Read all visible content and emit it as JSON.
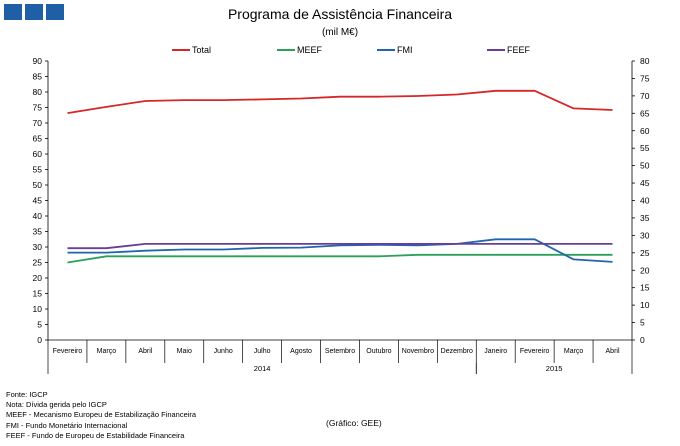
{
  "header": {
    "title": "Programa de Assistência Financeira",
    "unit": "(mil M€)"
  },
  "footer": {
    "notes": [
      "Fonte: IGCP",
      "Nota: Dívida gerida pelo IGCP",
      "MEEF - Mecanismo Europeu de Estabilização Financeira",
      "FMI - Fundo Monetário Internacional",
      "FEEF - Fundo de Europeu de Estabilidade Financeira"
    ],
    "credit": "(Gráfico: GEE)"
  },
  "chart_data": {
    "type": "line",
    "title": "Programa de Assistência Financeira",
    "subtitle": "(mil M€)",
    "categories": [
      "Fevereiro",
      "Março",
      "Abril",
      "Maio",
      "Junho",
      "Julho",
      "Agosto",
      "Setembro",
      "Outubro",
      "Novembro",
      "Dezembro",
      "Janeiro",
      "Fevereiro",
      "Março",
      "Abril"
    ],
    "year_groups": [
      {
        "label": "2014",
        "from": 0,
        "to": 10
      },
      {
        "label": "2015",
        "from": 11,
        "to": 14
      }
    ],
    "series": [
      {
        "name": "Total",
        "color": "#d62728",
        "values": [
          73.2,
          75.2,
          77.1,
          77.4,
          77.4,
          77.6,
          77.9,
          78.5,
          78.5,
          78.7,
          79.2,
          80.4,
          80.4,
          74.7,
          74.2
        ]
      },
      {
        "name": "MEEF",
        "color": "#2ca05a",
        "values": [
          25.0,
          27.0,
          27.0,
          27.0,
          27.0,
          27.0,
          27.0,
          27.0,
          27.0,
          27.5,
          27.5,
          27.5,
          27.5,
          27.5,
          27.5
        ]
      },
      {
        "name": "FMI",
        "color": "#2166ac",
        "values": [
          28.2,
          28.2,
          28.8,
          29.2,
          29.2,
          29.7,
          29.8,
          30.5,
          30.7,
          30.5,
          31.0,
          32.5,
          32.5,
          26.0,
          25.2
        ]
      },
      {
        "name": "FEEF",
        "color": "#6a3d9a",
        "values": [
          29.6,
          29.6,
          31.0,
          31.0,
          31.0,
          31.0,
          31.0,
          31.0,
          31.0,
          31.0,
          31.0,
          31.0,
          31.0,
          31.0,
          31.0
        ]
      }
    ],
    "ylim": [
      0,
      90
    ],
    "y_ticks": [
      0,
      5,
      10,
      15,
      20,
      25,
      30,
      35,
      40,
      45,
      50,
      55,
      60,
      65,
      70,
      75,
      80,
      85,
      90
    ],
    "y2lim": [
      0,
      80
    ],
    "y2_ticks": [
      0,
      5,
      10,
      15,
      20,
      25,
      30,
      35,
      40,
      45,
      50,
      55,
      60,
      65,
      70,
      75,
      80
    ],
    "legend_position": "top",
    "grid": false
  }
}
